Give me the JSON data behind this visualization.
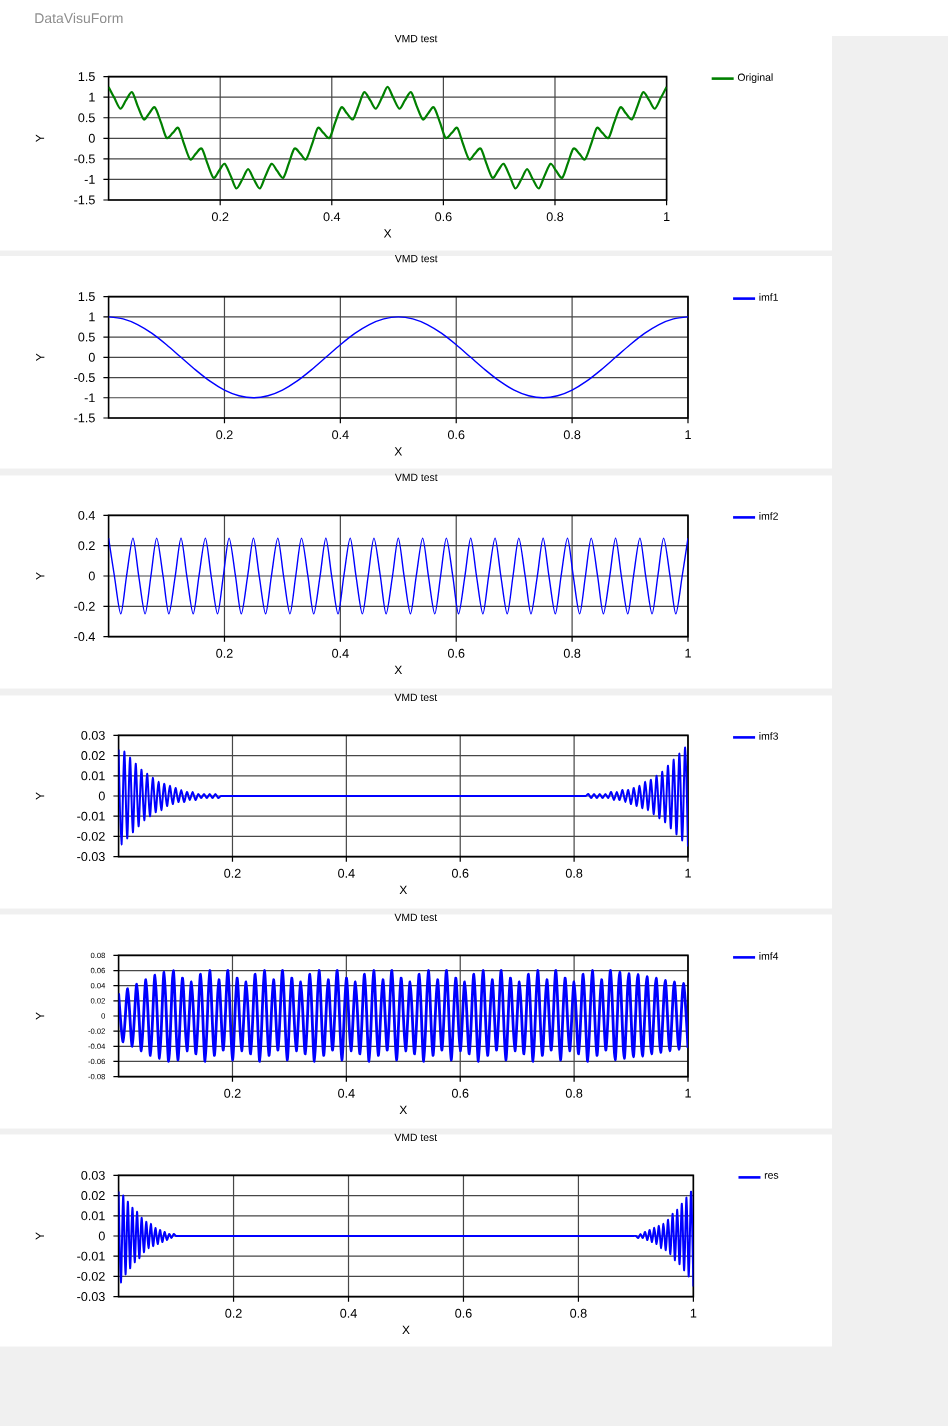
{
  "chart_data": [
    {
      "type": "line",
      "title": "VMD test",
      "xlabel": "X",
      "ylabel": "Y",
      "annotations": [
        "DataVisuForm"
      ],
      "x": [
        0,
        0.01,
        0.021,
        0.031,
        0.042,
        0.052,
        0.063,
        0.073,
        0.083,
        0.094,
        0.104,
        0.115,
        0.125,
        0.135,
        0.146,
        0.156,
        0.167,
        0.177,
        0.188,
        0.198,
        0.208,
        0.219,
        0.229,
        0.24,
        0.25,
        0.26,
        0.271,
        0.281,
        0.292,
        0.302,
        0.313,
        0.323,
        0.333,
        0.344,
        0.354,
        0.365,
        0.375,
        0.385,
        0.396,
        0.406,
        0.417,
        0.427,
        0.438,
        0.448,
        0.458,
        0.469,
        0.479,
        0.49,
        0.5,
        0.51,
        0.521,
        0.531,
        0.542,
        0.552,
        0.563,
        0.573,
        0.583,
        0.594,
        0.604,
        0.615,
        0.625,
        0.635,
        0.646,
        0.656,
        0.667,
        0.677,
        0.688,
        0.698,
        0.708,
        0.719,
        0.729,
        0.74,
        0.75,
        0.76,
        0.771,
        0.781,
        0.792,
        0.802,
        0.813,
        0.823,
        0.833,
        0.844,
        0.854,
        0.865,
        0.875,
        0.885,
        0.896,
        0.906,
        0.917,
        0.927,
        0.938,
        0.948,
        0.958,
        0.969,
        0.979,
        0.99,
        1
      ],
      "series": [
        {
          "name": "Original",
          "color": "#008000",
          "values": [
            1.25,
            0.99,
            0.72,
            0.92,
            1.12,
            0.79,
            0.46,
            0.61,
            0.75,
            0.38,
            0.01,
            0.13,
            0.25,
            -0.13,
            -0.51,
            -0.38,
            -0.25,
            -0.61,
            -0.96,
            -0.79,
            -0.62,
            -0.92,
            -1.22,
            -0.99,
            -0.75,
            -0.99,
            -1.22,
            -0.92,
            -0.62,
            -0.79,
            -0.96,
            -0.61,
            -0.25,
            -0.38,
            -0.51,
            -0.13,
            0.25,
            0.13,
            0.01,
            0.38,
            0.75,
            0.61,
            0.46,
            0.79,
            1.12,
            0.92,
            0.72,
            0.99,
            1.25,
            0.99,
            0.72,
            0.92,
            1.12,
            0.79,
            0.46,
            0.61,
            0.75,
            0.38,
            0.01,
            0.13,
            0.25,
            -0.13,
            -0.51,
            -0.38,
            -0.25,
            -0.61,
            -0.96,
            -0.79,
            -0.62,
            -0.92,
            -1.22,
            -0.99,
            -0.75,
            -0.99,
            -1.22,
            -0.92,
            -0.62,
            -0.79,
            -0.96,
            -0.61,
            -0.25,
            -0.38,
            -0.51,
            -0.13,
            0.25,
            0.13,
            0.01,
            0.38,
            0.75,
            0.61,
            0.46,
            0.79,
            1.12,
            0.92,
            0.72,
            0.99,
            1.25
          ]
        }
      ],
      "xlim": [
        0,
        1
      ],
      "ylim": [
        -1.5,
        1.5
      ],
      "xticks": [
        0.2,
        0.4,
        0.6,
        0.8,
        1
      ],
      "yticks": [
        -1.5,
        -1,
        -0.5,
        0,
        0.5,
        1,
        1.5
      ],
      "grid": true,
      "legend": "top right"
    },
    {
      "type": "line",
      "title": "VMD test",
      "xlabel": "X",
      "ylabel": "Y",
      "x": [
        0,
        0.025,
        0.05,
        0.075,
        0.1,
        0.125,
        0.15,
        0.175,
        0.2,
        0.225,
        0.25,
        0.275,
        0.3,
        0.325,
        0.35,
        0.375,
        0.4,
        0.425,
        0.45,
        0.475,
        0.5,
        0.525,
        0.55,
        0.575,
        0.6,
        0.625,
        0.65,
        0.675,
        0.7,
        0.725,
        0.75,
        0.775,
        0.8,
        0.825,
        0.85,
        0.875,
        0.9,
        0.925,
        0.95,
        0.975,
        1
      ],
      "series": [
        {
          "name": "imf1",
          "color": "#0000ff",
          "values": [
            1,
            0.95,
            0.81,
            0.59,
            0.31,
            0,
            -0.31,
            -0.59,
            -0.81,
            -0.95,
            -1,
            -0.95,
            -0.81,
            -0.59,
            -0.31,
            0,
            0.31,
            0.59,
            0.81,
            0.95,
            1,
            0.95,
            0.81,
            0.59,
            0.31,
            0,
            -0.31,
            -0.59,
            -0.81,
            -0.95,
            -1,
            -0.95,
            -0.81,
            -0.59,
            -0.31,
            0,
            0.31,
            0.59,
            0.81,
            0.95,
            1
          ]
        }
      ],
      "xlim": [
        0,
        1
      ],
      "ylim": [
        -1.5,
        1.5
      ],
      "xticks": [
        0.2,
        0.4,
        0.6,
        0.8,
        1
      ],
      "yticks": [
        -1.5,
        -1,
        -0.5,
        0,
        0.5,
        1,
        1.5
      ],
      "grid": true,
      "legend": "top right"
    },
    {
      "type": "line",
      "title": "VMD test",
      "xlabel": "X",
      "ylabel": "Y",
      "x": [
        0,
        0.01,
        0.021,
        0.031,
        0.042,
        0.052,
        0.063,
        0.073,
        0.083,
        0.094,
        0.104,
        0.115,
        0.125,
        0.135,
        0.146,
        0.156,
        0.167,
        0.177,
        0.188,
        0.198,
        0.208,
        0.219,
        0.229,
        0.24,
        0.25,
        0.26,
        0.271,
        0.281,
        0.292,
        0.302,
        0.313,
        0.323,
        0.333,
        0.344,
        0.354,
        0.365,
        0.375,
        0.385,
        0.396,
        0.406,
        0.417,
        0.427,
        0.438,
        0.448,
        0.458,
        0.469,
        0.479,
        0.49,
        0.5,
        0.51,
        0.521,
        0.531,
        0.542,
        0.552,
        0.563,
        0.573,
        0.583,
        0.594,
        0.604,
        0.615,
        0.625,
        0.635,
        0.646,
        0.656,
        0.667,
        0.677,
        0.688,
        0.698,
        0.708,
        0.719,
        0.729,
        0.74,
        0.75,
        0.76,
        0.771,
        0.781,
        0.792,
        0.802,
        0.813,
        0.823,
        0.833,
        0.844,
        0.854,
        0.865,
        0.875,
        0.885,
        0.896,
        0.906,
        0.917,
        0.927,
        0.938,
        0.948,
        0.958,
        0.969,
        0.979,
        0.99,
        1
      ],
      "series": [
        {
          "name": "imf2",
          "color": "#0000ff",
          "values": [
            0.25,
            0,
            -0.25,
            0,
            0.25,
            0,
            -0.25,
            0,
            0.25,
            0,
            -0.25,
            0,
            0.25,
            0,
            -0.25,
            0,
            0.25,
            0,
            -0.25,
            0,
            0.25,
            0,
            -0.25,
            0,
            0.25,
            0,
            -0.25,
            0,
            0.25,
            0,
            -0.25,
            0,
            0.25,
            0,
            -0.25,
            0,
            0.25,
            0,
            -0.25,
            0,
            0.25,
            0,
            -0.25,
            0,
            0.25,
            0,
            -0.25,
            0,
            0.25,
            0,
            -0.25,
            0,
            0.25,
            0,
            -0.25,
            0,
            0.25,
            0,
            -0.25,
            0,
            0.25,
            0,
            -0.25,
            0,
            0.25,
            0,
            -0.25,
            0,
            0.25,
            0,
            -0.25,
            0,
            0.25,
            0,
            -0.25,
            0,
            0.25,
            0,
            -0.25,
            0,
            0.25,
            0,
            -0.25,
            0,
            0.25,
            0,
            -0.25,
            0,
            0.25,
            0,
            -0.25,
            0,
            0.25,
            0,
            -0.25,
            0,
            0.25
          ]
        }
      ],
      "xlim": [
        0,
        1
      ],
      "ylim": [
        -0.4,
        0.4
      ],
      "xticks": [
        0.2,
        0.4,
        0.6,
        0.8,
        1
      ],
      "yticks": [
        -0.4,
        -0.2,
        0,
        0.2,
        0.4
      ],
      "grid": true,
      "legend": "top right"
    },
    {
      "type": "line",
      "title": "VMD test",
      "xlabel": "X",
      "ylabel": "Y",
      "x": [
        0,
        0.005,
        0.01,
        0.015,
        0.02,
        0.025,
        0.03,
        0.035,
        0.04,
        0.045,
        0.05,
        0.055,
        0.06,
        0.065,
        0.07,
        0.075,
        0.08,
        0.085,
        0.09,
        0.095,
        0.1,
        0.105,
        0.11,
        0.115,
        0.12,
        0.125,
        0.13,
        0.135,
        0.14,
        0.145,
        0.15,
        0.155,
        0.16,
        0.165,
        0.17,
        0.175,
        0.18,
        0.19,
        0.21,
        0.25,
        0.33,
        0.5,
        0.67,
        0.75,
        0.79,
        0.81,
        0.82,
        0.825,
        0.83,
        0.835,
        0.84,
        0.845,
        0.85,
        0.855,
        0.86,
        0.865,
        0.87,
        0.875,
        0.88,
        0.885,
        0.89,
        0.895,
        0.9,
        0.905,
        0.91,
        0.915,
        0.92,
        0.925,
        0.93,
        0.935,
        0.94,
        0.945,
        0.95,
        0.955,
        0.96,
        0.965,
        0.97,
        0.975,
        0.98,
        0.985,
        0.99,
        0.995,
        1
      ],
      "series": [
        {
          "name": "imf3",
          "color": "#0000ff",
          "values": [
            0.023,
            -0.024,
            0.022,
            -0.021,
            0.019,
            -0.018,
            0.016,
            -0.015,
            0.013,
            -0.012,
            0.011,
            -0.01,
            0.009,
            -0.008,
            0.007,
            -0.007,
            0.006,
            -0.005,
            0.005,
            -0.004,
            0.004,
            -0.003,
            0.003,
            -0.003,
            0.002,
            -0.002,
            0.002,
            -0.002,
            0.001,
            -0.001,
            0.001,
            -0.001,
            0.001,
            -0.001,
            0.001,
            -0.001,
            0,
            0,
            0,
            0,
            0,
            0,
            0,
            0,
            0,
            0,
            0,
            0.001,
            -0.001,
            0.001,
            -0.001,
            0.001,
            -0.001,
            0.001,
            -0.001,
            0.002,
            -0.002,
            0.002,
            -0.002,
            0.003,
            -0.003,
            0.003,
            -0.004,
            0.004,
            -0.005,
            0.005,
            -0.006,
            0.007,
            -0.007,
            0.008,
            -0.009,
            0.01,
            -0.011,
            0.012,
            -0.013,
            0.015,
            -0.016,
            0.018,
            -0.019,
            0.021,
            -0.022,
            0.024,
            -0.025
          ]
        }
      ],
      "xlim": [
        0,
        1
      ],
      "ylim": [
        -0.03,
        0.03
      ],
      "xticks": [
        0.2,
        0.4,
        0.6,
        0.8,
        1
      ],
      "yticks": [
        -0.03,
        -0.02,
        -0.01,
        0,
        0.01,
        0.02,
        0.03
      ],
      "grid": true,
      "legend": "top right"
    },
    {
      "type": "line",
      "title": "VMD test",
      "xlabel": "X",
      "ylabel": "Y",
      "x": [
        0,
        0.008,
        0.016,
        0.024,
        0.032,
        0.04,
        0.048,
        0.056,
        0.064,
        0.072,
        0.08,
        0.088,
        0.096,
        0.104,
        0.112,
        0.12,
        0.128,
        0.136,
        0.144,
        0.152,
        0.16,
        0.168,
        0.176,
        0.184,
        0.192,
        0.2,
        0.208,
        0.216,
        0.224,
        0.232,
        0.24,
        0.248,
        0.256,
        0.264,
        0.272,
        0.28,
        0.288,
        0.296,
        0.304,
        0.312,
        0.32,
        0.328,
        0.336,
        0.344,
        0.352,
        0.36,
        0.368,
        0.376,
        0.384,
        0.392,
        0.4,
        0.408,
        0.416,
        0.424,
        0.432,
        0.44,
        0.448,
        0.456,
        0.464,
        0.472,
        0.48,
        0.488,
        0.496,
        0.504,
        0.512,
        0.52,
        0.528,
        0.536,
        0.544,
        0.552,
        0.56,
        0.568,
        0.576,
        0.584,
        0.592,
        0.6,
        0.608,
        0.616,
        0.624,
        0.632,
        0.64,
        0.648,
        0.656,
        0.664,
        0.672,
        0.68,
        0.688,
        0.696,
        0.704,
        0.712,
        0.72,
        0.728,
        0.736,
        0.744,
        0.752,
        0.76,
        0.768,
        0.776,
        0.784,
        0.792,
        0.8,
        0.808,
        0.816,
        0.824,
        0.832,
        0.84,
        0.848,
        0.856,
        0.864,
        0.872,
        0.88,
        0.888,
        0.896,
        0.904,
        0.912,
        0.92,
        0.928,
        0.936,
        0.944,
        0.952,
        0.96,
        0.968,
        0.976,
        0.984,
        0.992,
        1
      ],
      "series": [
        {
          "name": "imf4",
          "color": "#0000ff",
          "values": [
            0.03,
            -0.034,
            0.036,
            -0.04,
            0.042,
            -0.046,
            0.048,
            -0.052,
            0.054,
            -0.056,
            0.058,
            -0.06,
            0.06,
            -0.058,
            0.05,
            -0.046,
            0.045,
            -0.05,
            0.055,
            -0.06,
            0.06,
            -0.052,
            0.048,
            -0.045,
            0.06,
            -0.058,
            0.05,
            -0.046,
            0.045,
            -0.05,
            0.055,
            -0.06,
            0.06,
            -0.052,
            0.048,
            -0.045,
            0.06,
            -0.058,
            0.05,
            -0.046,
            0.045,
            -0.05,
            0.055,
            -0.06,
            0.06,
            -0.052,
            0.048,
            -0.045,
            0.06,
            -0.058,
            0.05,
            -0.046,
            0.045,
            -0.05,
            0.055,
            -0.06,
            0.06,
            -0.052,
            0.048,
            -0.045,
            0.06,
            -0.058,
            0.05,
            -0.046,
            0.045,
            -0.05,
            0.055,
            -0.06,
            0.06,
            -0.052,
            0.048,
            -0.045,
            0.06,
            -0.058,
            0.05,
            -0.046,
            0.045,
            -0.05,
            0.055,
            -0.06,
            0.06,
            -0.052,
            0.048,
            -0.045,
            0.06,
            -0.058,
            0.05,
            -0.046,
            0.045,
            -0.05,
            0.055,
            -0.06,
            0.06,
            -0.052,
            0.048,
            -0.045,
            0.06,
            -0.058,
            0.05,
            -0.046,
            0.045,
            -0.05,
            0.055,
            -0.06,
            0.06,
            -0.052,
            0.048,
            -0.045,
            0.06,
            -0.058,
            0.058,
            -0.056,
            0.056,
            -0.054,
            0.055,
            -0.053,
            0.052,
            -0.05,
            0.05,
            -0.048,
            0.047,
            -0.046,
            0.045,
            -0.044,
            0.043,
            -0.042
          ]
        }
      ],
      "xlim": [
        0,
        1
      ],
      "ylim": [
        -0.08,
        0.08
      ],
      "xticks": [
        0.2,
        0.4,
        0.6,
        0.8,
        1
      ],
      "yticks": [
        -0.08,
        -0.06,
        -0.04,
        -0.02,
        0,
        0.02,
        0.04,
        0.06,
        0.08
      ],
      "grid": true,
      "legend": "top right"
    },
    {
      "type": "line",
      "title": "VMD test",
      "xlabel": "X",
      "ylabel": "Y",
      "x": [
        0,
        0.004,
        0.008,
        0.012,
        0.016,
        0.02,
        0.024,
        0.028,
        0.032,
        0.036,
        0.04,
        0.044,
        0.048,
        0.052,
        0.056,
        0.06,
        0.064,
        0.068,
        0.072,
        0.076,
        0.08,
        0.084,
        0.088,
        0.092,
        0.096,
        0.1,
        0.108,
        0.124,
        0.156,
        0.22,
        0.35,
        0.5,
        0.65,
        0.78,
        0.844,
        0.876,
        0.892,
        0.9,
        0.904,
        0.908,
        0.912,
        0.916,
        0.92,
        0.924,
        0.928,
        0.932,
        0.936,
        0.94,
        0.944,
        0.948,
        0.952,
        0.956,
        0.96,
        0.964,
        0.968,
        0.972,
        0.976,
        0.98,
        0.984,
        0.988,
        0.992,
        0.996,
        1
      ],
      "series": [
        {
          "name": "res",
          "color": "#0000ff",
          "values": [
            0.022,
            -0.023,
            0.02,
            -0.019,
            0.017,
            -0.016,
            0.014,
            -0.013,
            0.012,
            -0.011,
            0.009,
            -0.008,
            0.007,
            -0.006,
            0.006,
            -0.005,
            0.004,
            -0.004,
            0.003,
            -0.003,
            0.002,
            -0.002,
            0.001,
            -0.001,
            0.001,
            0,
            0,
            0,
            0,
            0,
            0,
            0,
            0,
            0,
            0,
            0,
            0,
            0,
            -0.001,
            0.001,
            -0.001,
            0.002,
            -0.002,
            0.003,
            -0.003,
            0.004,
            -0.004,
            0.005,
            -0.006,
            0.006,
            -0.007,
            0.008,
            -0.009,
            0.011,
            -0.012,
            0.013,
            -0.014,
            0.016,
            -0.017,
            0.019,
            -0.02,
            0.022,
            -0.025
          ]
        }
      ],
      "xlim": [
        0,
        1
      ],
      "ylim": [
        -0.03,
        0.03
      ],
      "xticks": [
        0.2,
        0.4,
        0.6,
        0.8,
        1
      ],
      "yticks": [
        -0.03,
        -0.02,
        -0.01,
        0,
        0.01,
        0.02,
        0.03
      ],
      "grid": true,
      "legend": "top right"
    }
  ]
}
